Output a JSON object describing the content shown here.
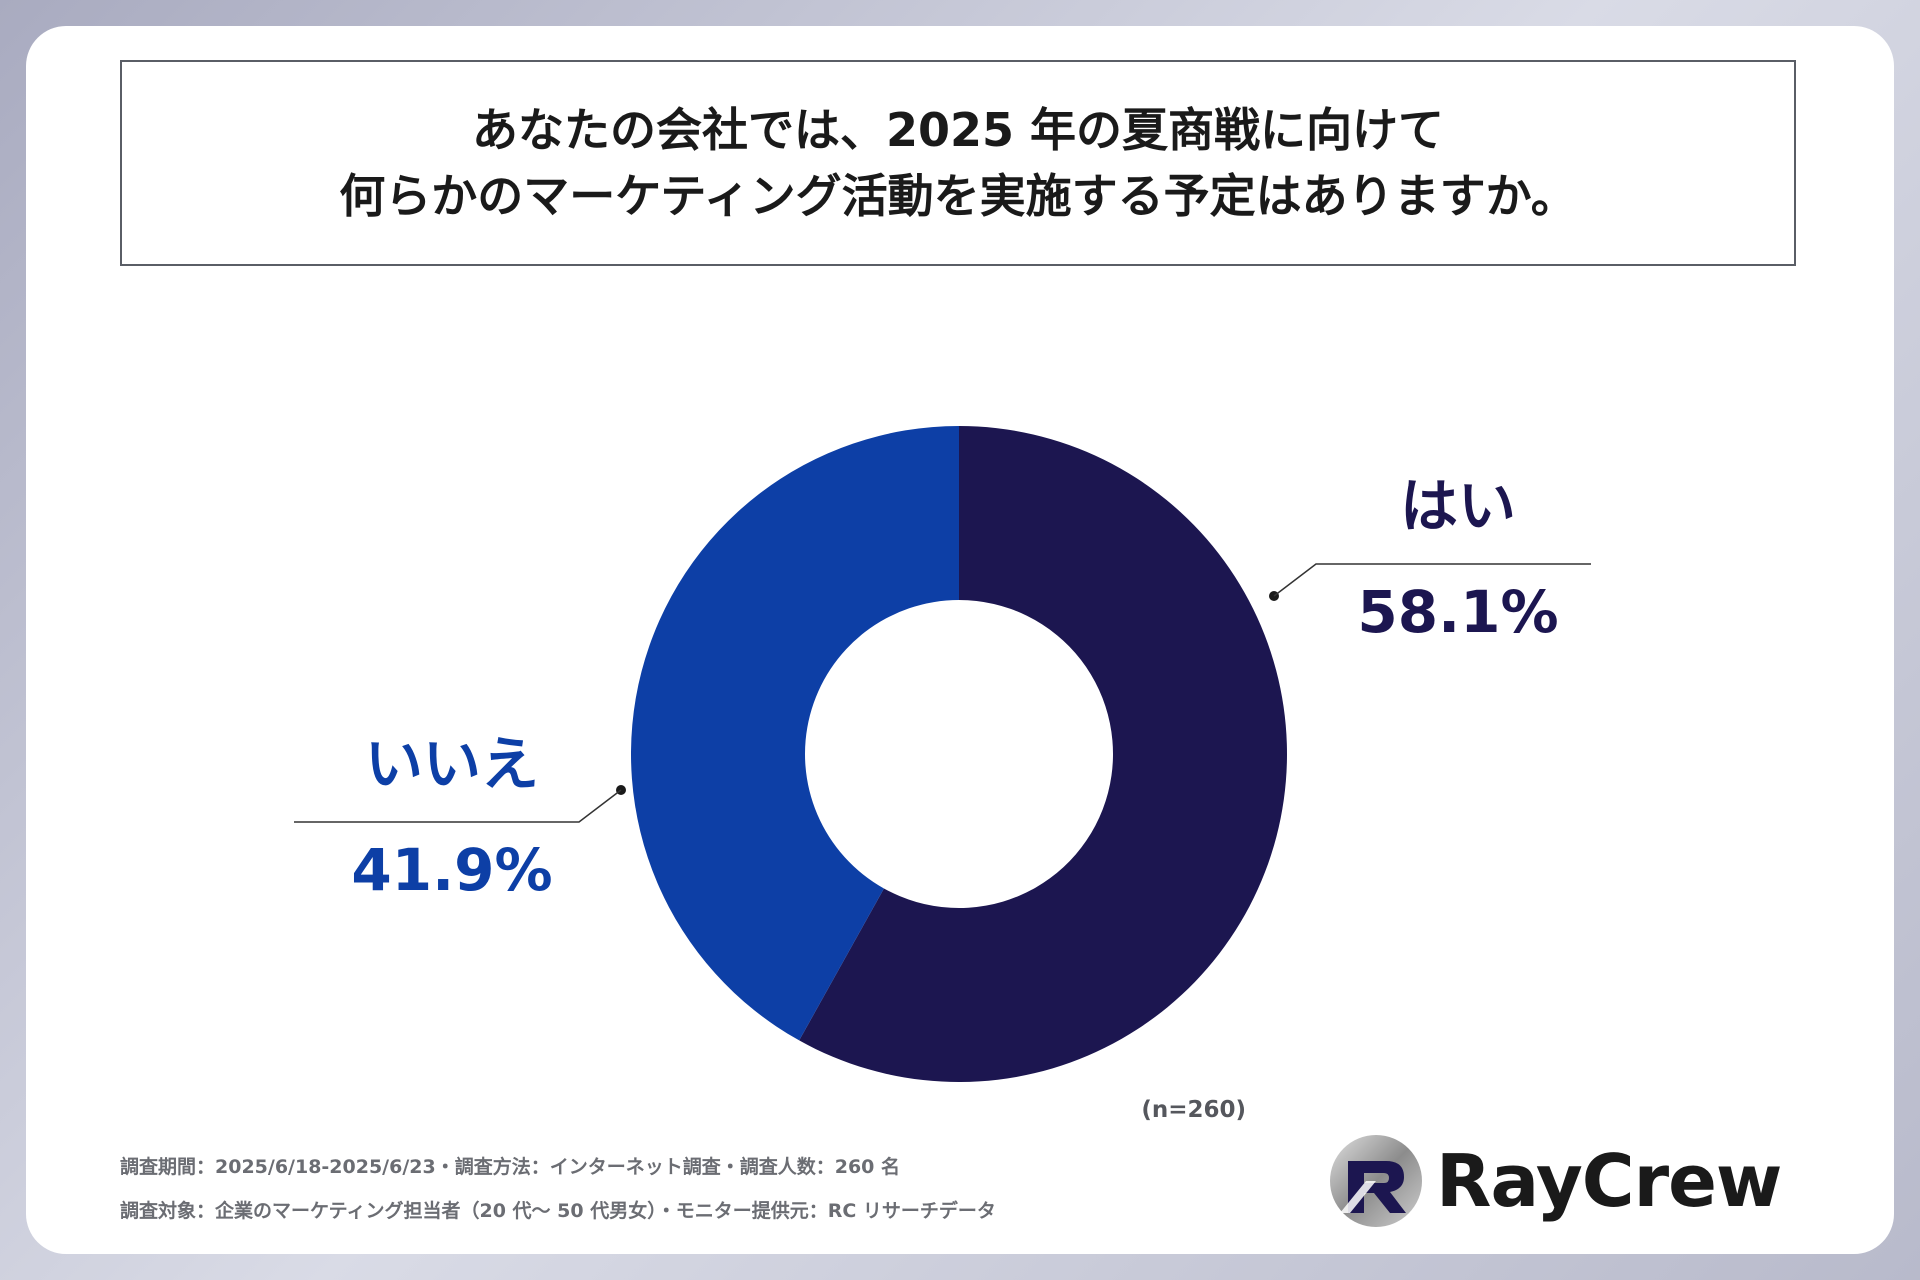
{
  "title": {
    "line1": "あなたの会社では、2025 年の夏商戦に向けて",
    "line2": "何らかのマーケティング活動を実施する予定はありますか。"
  },
  "chart_data": {
    "type": "pie",
    "donut": true,
    "title": "あなたの会社では、2025 年の夏商戦に向けて何らかのマーケティング活動を実施する予定はありますか。",
    "categories": [
      "はい",
      "いいえ"
    ],
    "values": [
      58.1,
      41.9
    ],
    "value_labels": [
      "58.1%",
      "41.9%"
    ],
    "colors": [
      "#1c1650",
      "#0d3fa6"
    ],
    "label_colors": [
      "#1c1650",
      "#0d3fa6"
    ],
    "sample_note": "(n=260)"
  },
  "footnotes": {
    "line1": "調査期間：2025/6/18-2025/6/23・調査方法：インターネット調査・調査人数：260 名",
    "line2": "調査対象：企業のマーケティング担当者（20 代～ 50 代男女）・モニター提供元：RC リサーチデータ"
  },
  "logo": {
    "text": "RayCrew"
  }
}
